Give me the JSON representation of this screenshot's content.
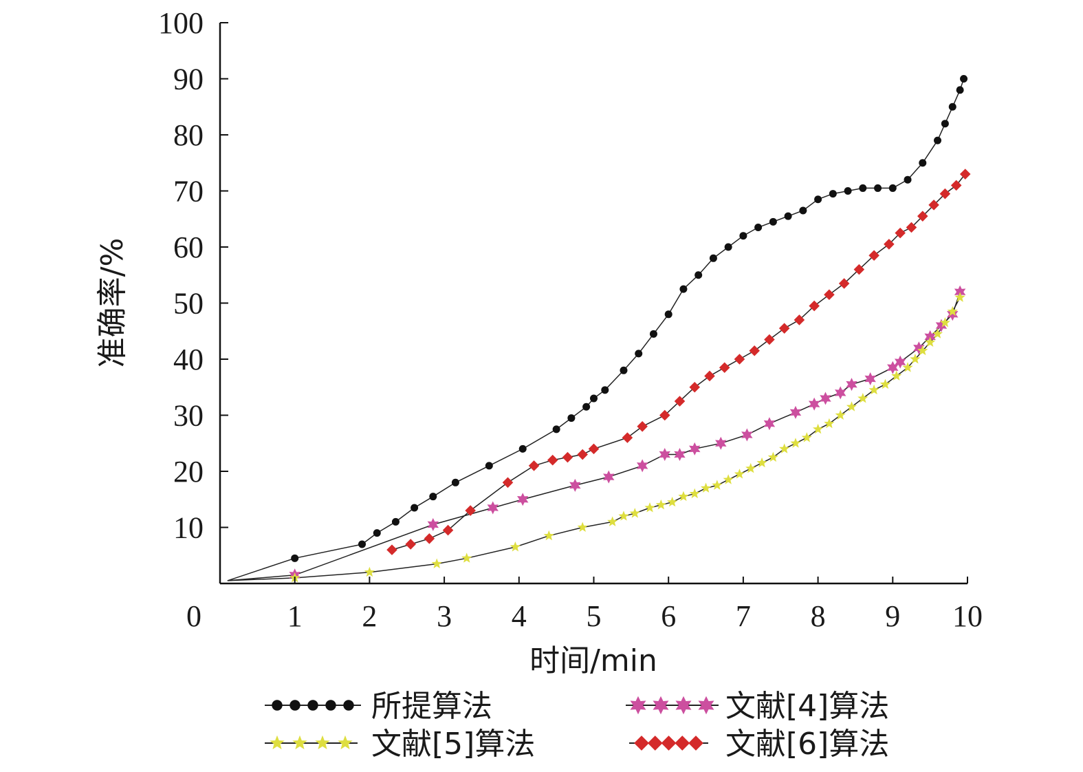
{
  "chart_data": {
    "type": "line",
    "xlabel": "时间/min",
    "ylabel": "准确率/%",
    "xlim": [
      0,
      10
    ],
    "ylim": [
      0,
      100
    ],
    "x_ticks": [
      "0",
      "1",
      "2",
      "3",
      "4",
      "5",
      "6",
      "7",
      "8",
      "9",
      "10"
    ],
    "y_ticks": [
      "10",
      "20",
      "30",
      "40",
      "50",
      "60",
      "70",
      "80",
      "90",
      "100"
    ],
    "grid": false,
    "legend_position": "bottom",
    "series": [
      {
        "name": "所提算法",
        "color": "#111111",
        "marker": "circle",
        "x": [
          0.1,
          1.0,
          1.9,
          2.1,
          2.35,
          2.6,
          2.85,
          3.15,
          3.6,
          4.05,
          4.5,
          4.7,
          4.9,
          5.0,
          5.15,
          5.4,
          5.6,
          5.8,
          6.0,
          6.2,
          6.4,
          6.6,
          6.8,
          7.0,
          7.2,
          7.4,
          7.6,
          7.8,
          8.0,
          8.2,
          8.4,
          8.6,
          8.8,
          9.0,
          9.2,
          9.4,
          9.6,
          9.7,
          9.8,
          9.9,
          9.95
        ],
        "y": [
          0.5,
          4.5,
          7,
          9,
          11,
          13.5,
          15.5,
          18,
          21,
          24,
          27.5,
          29.5,
          31.5,
          33,
          34.5,
          38,
          41,
          44.5,
          48,
          52.5,
          55,
          58,
          60,
          62,
          63.5,
          64.5,
          65.5,
          66.5,
          68.5,
          69.5,
          70,
          70.5,
          70.5,
          70.5,
          72,
          75,
          79,
          82,
          85,
          88,
          90
        ]
      },
      {
        "name": "文献[4]算法",
        "color": "#cc4f9f",
        "marker": "star6",
        "x": [
          0.1,
          1.0,
          2.85,
          3.65,
          4.05,
          4.75,
          5.2,
          5.65,
          5.95,
          6.15,
          6.35,
          6.7,
          7.05,
          7.35,
          7.7,
          7.95,
          8.1,
          8.3,
          8.45,
          8.7,
          9.0,
          9.1,
          9.35,
          9.5,
          9.65,
          9.8,
          9.9
        ],
        "y": [
          0.5,
          1.5,
          10.5,
          13.5,
          15,
          17.5,
          19,
          21,
          23,
          23,
          24,
          25,
          26.5,
          28.5,
          30.5,
          32,
          33,
          34,
          35.5,
          36.5,
          38.5,
          39.5,
          42,
          44,
          46,
          48,
          52
        ]
      },
      {
        "name": "文献[5]算法",
        "color": "#dede40",
        "marker": "star5",
        "x": [
          0.1,
          1.0,
          2.0,
          2.9,
          3.3,
          3.95,
          4.4,
          4.85,
          5.25,
          5.4,
          5.55,
          5.75,
          5.9,
          6.05,
          6.2,
          6.35,
          6.5,
          6.65,
          6.8,
          6.95,
          7.1,
          7.25,
          7.4,
          7.55,
          7.7,
          7.85,
          8.0,
          8.15,
          8.3,
          8.45,
          8.6,
          8.75,
          8.9,
          9.05,
          9.2,
          9.3,
          9.4,
          9.5,
          9.6,
          9.7,
          9.8,
          9.9
        ],
        "y": [
          0.5,
          1,
          2,
          3.5,
          4.5,
          6.5,
          8.5,
          10,
          11,
          12,
          12.5,
          13.5,
          14,
          14.5,
          15.5,
          16,
          17,
          17.5,
          18.5,
          19.5,
          20.5,
          21.5,
          22.5,
          24,
          25,
          26,
          27.5,
          28.5,
          30,
          31.5,
          33,
          34.5,
          35.5,
          37,
          38.5,
          40,
          41.5,
          43,
          44.5,
          46.5,
          48.5,
          51
        ]
      },
      {
        "name": "文献[6]算法",
        "color": "#d42a2a",
        "marker": "square",
        "x": [
          2.3,
          2.55,
          2.8,
          3.05,
          3.35,
          3.85,
          4.2,
          4.45,
          4.65,
          4.85,
          5.0,
          5.45,
          5.65,
          5.95,
          6.15,
          6.35,
          6.55,
          6.75,
          6.95,
          7.15,
          7.35,
          7.55,
          7.75,
          7.95,
          8.15,
          8.35,
          8.55,
          8.75,
          8.95,
          9.1,
          9.25,
          9.4,
          9.55,
          9.7,
          9.85,
          9.97
        ],
        "y": [
          6,
          7,
          8,
          9.5,
          13,
          18,
          21,
          22,
          22.5,
          23,
          24,
          26,
          28,
          30,
          32.5,
          35,
          37,
          38.5,
          40,
          41.5,
          43.5,
          45.5,
          47,
          49.5,
          51.5,
          53.5,
          56,
          58.5,
          60.5,
          62.5,
          63.5,
          65.5,
          67.5,
          69.5,
          71,
          73
        ]
      }
    ]
  }
}
